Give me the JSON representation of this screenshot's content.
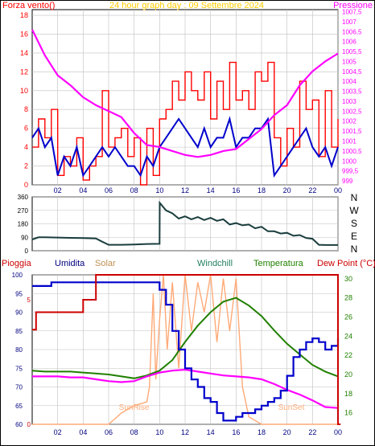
{
  "colors": {
    "wind": "#ff0000",
    "gust": "#0000cc",
    "pressure": "#ff00ff",
    "direction": "#1a3d3d",
    "rain": "#cc0000",
    "humidity": "#0000cc",
    "solar": "#ffaa77",
    "windchill": "#208060",
    "temperature": "#208000",
    "dewpoint": "#ff00ff",
    "title": "#ffcc00",
    "grid": "#c0c0c0"
  },
  "chart_data": [
    {
      "type": "line",
      "title": "24 hour graph day : 09 Settembre 2024",
      "left_label": "Forza vento()",
      "right_label": "Pressione",
      "x_ticks": [
        "02",
        "04",
        "06",
        "08",
        "10",
        "12",
        "14",
        "16",
        "18",
        "20",
        "22",
        "00"
      ],
      "xlim": [
        0,
        24
      ],
      "y_left": {
        "ticks": [
          "0",
          "2",
          "4",
          "6",
          "8",
          "10",
          "12",
          "14",
          "16",
          "18"
        ],
        "ylim": [
          0,
          18.6
        ]
      },
      "y_right": {
        "ticks": [
          "999",
          "999,5",
          "1000",
          "1000,5",
          "1001",
          "1001,5",
          "1002",
          "1002,5",
          "1003",
          "1003,5",
          "1004",
          "1004,5",
          "1005",
          "1005,5",
          "1006",
          "1006,5",
          "1007",
          "1007,5"
        ],
        "ylim": [
          998.8,
          1007.6
        ]
      },
      "series": [
        {
          "x": [
            0,
            0.5,
            1,
            1.5,
            2,
            2.5,
            3,
            3.5,
            4,
            4.5,
            5,
            5.5,
            6,
            6.5,
            7,
            7.5,
            8,
            8.5,
            9,
            9.5,
            10,
            10.5,
            11,
            11.5,
            12,
            12.5,
            13,
            13.5,
            14,
            14.5,
            15,
            15.5,
            16,
            16.5,
            17,
            17.5,
            18,
            18.5,
            19,
            19.5,
            20,
            20.5,
            21,
            21.5,
            22,
            22.5,
            23,
            23.5,
            24
          ],
          "values": [
            4,
            7,
            5,
            8,
            1,
            3,
            2,
            5,
            0.5,
            2,
            3,
            10,
            4,
            5,
            6,
            3,
            5,
            0,
            6,
            1,
            7,
            8,
            11,
            9,
            12,
            10,
            9,
            12,
            7,
            11,
            8,
            13,
            9,
            10,
            8,
            12,
            11,
            13,
            5,
            2,
            6,
            4,
            11,
            8,
            9,
            3,
            10,
            4,
            7
          ]
        },
        {
          "x": [
            0,
            0.5,
            1,
            1.5,
            2,
            2.5,
            3,
            3.5,
            4,
            4.5,
            5,
            5.5,
            6,
            6.5,
            7,
            7.5,
            8,
            8.5,
            9,
            9.5,
            10,
            10.5,
            11,
            11.5,
            12,
            12.5,
            13,
            13.5,
            14,
            14.5,
            15,
            15.5,
            16,
            16.5,
            17,
            17.5,
            18,
            18.5,
            19,
            19.5,
            20,
            20.5,
            21,
            21.5,
            22,
            22.5,
            23,
            23.5,
            24
          ],
          "values": [
            5,
            6,
            4,
            5,
            1,
            3,
            2,
            4,
            1,
            2,
            3,
            4,
            3,
            4,
            3,
            2,
            2,
            1,
            3,
            2,
            4,
            5,
            6,
            7,
            6,
            5,
            4,
            6,
            4,
            5,
            5,
            7,
            4,
            5,
            5,
            6,
            6,
            7,
            1,
            2,
            3,
            4,
            5,
            6,
            4,
            3,
            4,
            2,
            4
          ]
        },
        {
          "x": [
            0,
            1,
            2,
            3,
            4,
            5,
            6,
            7,
            8,
            9,
            10,
            11,
            12,
            13,
            14,
            15,
            16,
            17,
            18,
            19,
            20,
            21,
            22,
            23,
            24
          ],
          "values": [
            1006.6,
            1005.3,
            1004.3,
            1003.8,
            1003.2,
            1002.8,
            1002.5,
            1002.2,
            1001.4,
            1000.8,
            1000.7,
            1000.5,
            1000.3,
            1000.2,
            1000.3,
            1000.5,
            1000.6,
            1001.1,
            1001.6,
            1002.3,
            1002.8,
            1003.8,
            1004.5,
            1005.0,
            1005.4
          ]
        }
      ]
    },
    {
      "type": "line",
      "x_ticks": [
        "02",
        "04",
        "06",
        "08",
        "10",
        "12",
        "14",
        "16",
        "18",
        "20",
        "22",
        "00"
      ],
      "xlim": [
        0,
        24
      ],
      "y_left": {
        "ticks": [
          "0",
          "90",
          "180",
          "270",
          "360"
        ],
        "ylim": [
          0,
          360
        ]
      },
      "compass_labels": [
        "N",
        "W",
        "S",
        "E",
        "N"
      ],
      "series": [
        {
          "x": [
            0,
            0.5,
            1,
            2,
            3,
            4,
            5,
            5.5,
            6,
            7,
            8,
            9,
            10,
            10.01,
            10.5,
            11,
            11.5,
            12,
            12.5,
            13,
            13.5,
            14,
            14.5,
            15,
            15.5,
            16,
            16.5,
            17,
            17.5,
            18,
            18.5,
            19,
            19.5,
            20,
            20.5,
            21,
            21.5,
            22,
            22.5,
            23,
            23.5,
            24
          ],
          "values": [
            75,
            90,
            90,
            88,
            86,
            85,
            82,
            60,
            40,
            40,
            42,
            45,
            46,
            320,
            270,
            250,
            215,
            230,
            210,
            225,
            205,
            220,
            200,
            210,
            175,
            185,
            170,
            175,
            150,
            160,
            130,
            130,
            115,
            120,
            100,
            105,
            85,
            80,
            40,
            38,
            38,
            38
          ]
        }
      ]
    },
    {
      "type": "line",
      "series_labels": [
        "Pioggia",
        "Umidita",
        "Solar",
        "Windchill",
        "Temperatura",
        "Dew Point (°C)"
      ],
      "x_ticks": [
        "02",
        "04",
        "06",
        "08",
        "10",
        "12",
        "14",
        "16",
        "18",
        "20",
        "22",
        "00"
      ],
      "annotations": [
        "SunRise",
        "SunSet"
      ],
      "xlim": [
        0,
        24
      ],
      "y_left": {
        "ticks": [
          "60",
          "65",
          "70",
          "75",
          "80",
          "85",
          "90",
          "95",
          "100"
        ],
        "ylim": [
          60,
          100
        ]
      },
      "y_rain": {
        "ticks": [
          "0",
          "5"
        ],
        "ylim": [
          0,
          6
        ]
      },
      "y_right": {
        "ticks": [
          "16",
          "18",
          "20",
          "22",
          "24",
          "26",
          "28",
          "30"
        ],
        "ylim": [
          14.8,
          30.4
        ]
      },
      "series": [
        {
          "x": [
            0,
            0.3,
            0.3,
            1,
            1.5,
            1.5,
            4,
            4,
            4.5,
            5,
            5,
            24,
            24,
            24.2
          ],
          "values": [
            3.8,
            3.8,
            4.5,
            4.5,
            4.5,
            4.5,
            4.5,
            5.0,
            5.0,
            5.0,
            6.0,
            6.0,
            0,
            0
          ]
        },
        {
          "x": [
            0,
            1,
            1.5,
            2,
            3,
            4,
            5,
            6,
            7,
            8,
            9,
            10,
            10.5,
            11,
            11.5,
            12,
            12.5,
            13,
            13.5,
            14,
            14.5,
            15,
            15.5,
            16,
            16.5,
            17,
            17.5,
            18,
            18.5,
            19,
            19.5,
            20,
            20.5,
            21,
            21.5,
            22,
            22.5,
            23,
            23.5,
            24
          ],
          "values": [
            97,
            97,
            98,
            98,
            98,
            98,
            98,
            98,
            98,
            98,
            98,
            96,
            92,
            85,
            80,
            75,
            72,
            70,
            67,
            66,
            63,
            61,
            61,
            62,
            63,
            63,
            64,
            65,
            66,
            67,
            69,
            73,
            78,
            80,
            82,
            83,
            82,
            80,
            81,
            83
          ]
        },
        {
          "x": [
            0,
            6,
            7,
            8,
            9,
            9.2,
            9.5,
            9.7,
            10,
            10.3,
            10.6,
            11,
            11.5,
            12,
            12.5,
            13,
            13.5,
            14,
            14.5,
            15,
            15.5,
            16,
            16.5,
            17,
            18,
            19,
            20,
            21,
            22,
            23,
            24
          ],
          "values": [
            60,
            60,
            63,
            65,
            66,
            70,
            95,
            72,
            88,
            100,
            80,
            98,
            75,
            100,
            85,
            98,
            90,
            100,
            82,
            99,
            85,
            99,
            70,
            62,
            60,
            60,
            60,
            60,
            60,
            60,
            60
          ]
        },
        {
          "x": [
            0,
            1,
            2,
            3,
            4,
            5,
            6,
            7,
            8,
            9,
            10,
            11,
            12,
            13,
            14,
            15,
            16,
            17,
            18,
            19,
            20,
            21,
            22,
            23,
            24
          ],
          "values": [
            20.4,
            20.3,
            20.3,
            20.3,
            20.2,
            20.1,
            20.0,
            19.8,
            19.6,
            19.9,
            20.4,
            21.5,
            23.4,
            25.1,
            26.5,
            27.6,
            28.0,
            27.2,
            26.1,
            24.6,
            23.2,
            22.1,
            21.0,
            20.3,
            19.8
          ]
        },
        {
          "x": [
            0,
            1,
            2,
            3,
            4,
            5,
            6,
            7,
            8,
            9,
            10,
            11,
            12,
            13,
            14,
            15,
            16,
            17,
            18,
            19,
            20,
            21,
            22,
            23,
            24
          ],
          "values": [
            19.8,
            19.8,
            19.8,
            19.7,
            19.7,
            19.5,
            19.3,
            19.2,
            19.3,
            19.8,
            20.2,
            20.4,
            20.5,
            20.3,
            20.1,
            19.9,
            19.8,
            19.7,
            19.5,
            19.0,
            18.4,
            17.9,
            17.3,
            16.6,
            16.5
          ]
        }
      ]
    }
  ]
}
